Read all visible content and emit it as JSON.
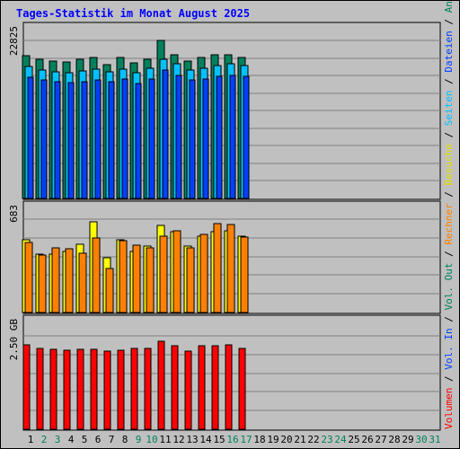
{
  "title": "Tages-Statistik im Monat August 2025",
  "colors": {
    "background": "#c0c0c0",
    "panel": "#c0c0c0",
    "grid": "#808080",
    "title": "#0000ff",
    "anfragen": "#00805c",
    "dateien": "#0040ff",
    "seiten": "#00c0ff",
    "besuche": "#ffff00",
    "rechner": "#ff8000",
    "vol_out": "#00805c",
    "vol_in": "#0040ff",
    "volumen": "#ff0000",
    "weekday": "#000000",
    "weekend": "#00805c"
  },
  "days": [
    "1",
    "2",
    "3",
    "4",
    "5",
    "6",
    "7",
    "8",
    "9",
    "10",
    "11",
    "12",
    "13",
    "14",
    "15",
    "16",
    "17",
    "18",
    "19",
    "20",
    "21",
    "22",
    "23",
    "24",
    "25",
    "26",
    "27",
    "28",
    "29",
    "30",
    "31"
  ],
  "weekend_days": [
    "2",
    "3",
    "9",
    "10",
    "16",
    "17",
    "23",
    "24",
    "30",
    "31"
  ],
  "right_labels": [
    {
      "text": "Volumen",
      "color": "#ff0000"
    },
    {
      "text": " / ",
      "color": "#000000"
    },
    {
      "text": "Vol. In",
      "color": "#0040ff"
    },
    {
      "text": " / ",
      "color": "#000000"
    },
    {
      "text": "Vol. Out",
      "color": "#00805c"
    },
    {
      "text": " / ",
      "color": "#000000"
    },
    {
      "text": "Rechner",
      "color": "#ff8000"
    },
    {
      "text": " / ",
      "color": "#000000"
    },
    {
      "text": "Besuche",
      "color": "#e0e000"
    },
    {
      "text": " / ",
      "color": "#000000"
    },
    {
      "text": "Seiten",
      "color": "#00c0ff"
    },
    {
      "text": " / ",
      "color": "#000000"
    },
    {
      "text": "Dateien",
      "color": "#0040ff"
    },
    {
      "text": " / ",
      "color": "#000000"
    },
    {
      "text": "Anfragen",
      "color": "#00805c"
    }
  ],
  "chart_data": [
    {
      "type": "bar",
      "panel": "top",
      "ymax_label": "22825",
      "ylim": [
        0,
        22825
      ],
      "categories": [
        "1",
        "2",
        "3",
        "4",
        "5",
        "6",
        "7",
        "8",
        "9",
        "10",
        "11",
        "12",
        "13",
        "14",
        "15",
        "16",
        "17"
      ],
      "series": [
        {
          "name": "Anfragen",
          "color": "#00805c",
          "values": [
            20600,
            20100,
            19800,
            19700,
            20100,
            20400,
            19300,
            20300,
            19600,
            20100,
            22825,
            20800,
            19800,
            20300,
            20800,
            20800,
            20400
          ]
        },
        {
          "name": "Seiten",
          "color": "#00c0ff",
          "values": [
            19100,
            18600,
            18300,
            18200,
            18400,
            18700,
            18300,
            18700,
            18100,
            18800,
            20100,
            19400,
            18600,
            18800,
            19200,
            19400,
            19200
          ]
        },
        {
          "name": "Dateien",
          "color": "#0040ff",
          "values": [
            17500,
            17100,
            16900,
            16700,
            16900,
            17100,
            16800,
            17200,
            16600,
            17200,
            18500,
            17800,
            17100,
            17300,
            17600,
            17800,
            17600
          ]
        }
      ]
    },
    {
      "type": "bar",
      "panel": "middle",
      "ymax_label": "683",
      "ylim": [
        0,
        683
      ],
      "categories": [
        "1",
        "2",
        "3",
        "4",
        "5",
        "6",
        "7",
        "8",
        "9",
        "10",
        "11",
        "12",
        "13",
        "14",
        "15",
        "16",
        "17"
      ],
      "series": [
        {
          "name": "Besuche",
          "color": "#ffff00",
          "values": [
            535,
            425,
            425,
            445,
            500,
            665,
            400,
            535,
            445,
            485,
            640,
            590,
            485,
            560,
            590,
            600,
            555
          ]
        },
        {
          "name": "Rechner",
          "color": "#ff8000",
          "values": [
            510,
            420,
            470,
            465,
            435,
            545,
            320,
            525,
            495,
            475,
            560,
            600,
            475,
            570,
            650,
            645,
            550
          ]
        }
      ]
    },
    {
      "type": "bar",
      "panel": "bottom",
      "ymax_label": "2.50 GB",
      "ylim": [
        0,
        2.5
      ],
      "categories": [
        "1",
        "2",
        "3",
        "4",
        "5",
        "6",
        "7",
        "8",
        "9",
        "10",
        "11",
        "12",
        "13",
        "14",
        "15",
        "16",
        "17"
      ],
      "series": [
        {
          "name": "Volumen",
          "color": "#ff0000",
          "values": [
            2.25,
            2.17,
            2.15,
            2.12,
            2.15,
            2.15,
            2.08,
            2.12,
            2.17,
            2.17,
            2.35,
            2.23,
            2.1,
            2.23,
            2.23,
            2.25,
            2.17
          ]
        }
      ]
    }
  ]
}
